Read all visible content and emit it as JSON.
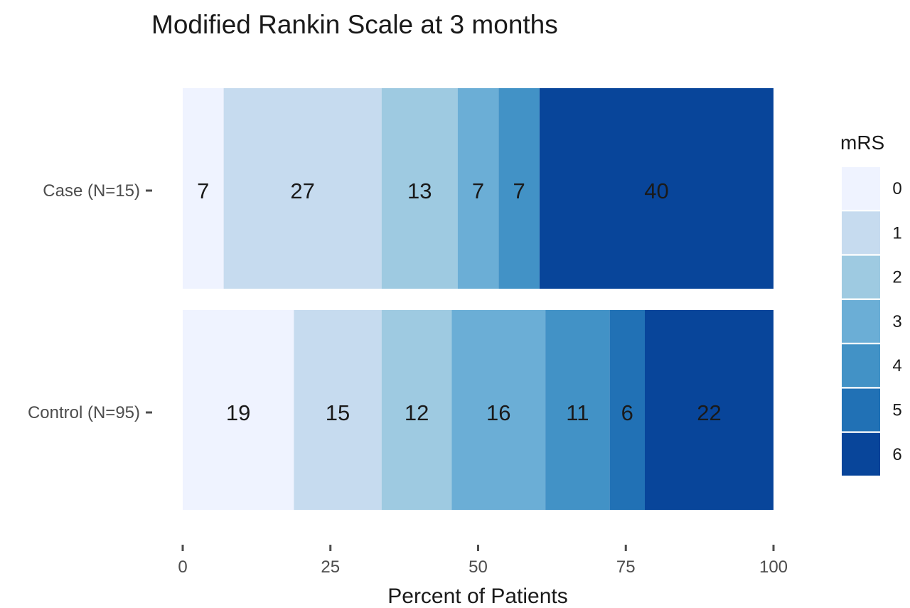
{
  "chart_data": {
    "type": "bar",
    "orientation": "horizontal",
    "stacked": true,
    "title": "Modified Rankin Scale at 3 months",
    "xlabel": "Percent of Patients",
    "ylabel": "",
    "xlim": [
      0,
      100
    ],
    "xticks": [
      0,
      25,
      50,
      75,
      100
    ],
    "categories": [
      "Case (N=15)",
      "Control (N=95)"
    ],
    "legend": {
      "title": "mRS",
      "position": "right"
    },
    "grid": false,
    "series": [
      {
        "name": "0",
        "color": "#EFF3FF",
        "values": [
          7,
          19
        ],
        "labels": [
          "7",
          "19"
        ]
      },
      {
        "name": "1",
        "color": "#C6DBEF",
        "values": [
          27,
          15
        ],
        "labels": [
          "27",
          "15"
        ]
      },
      {
        "name": "2",
        "color": "#9ECAE1",
        "values": [
          13,
          12
        ],
        "labels": [
          "13",
          "12"
        ]
      },
      {
        "name": "3",
        "color": "#6BAED6",
        "values": [
          7,
          16
        ],
        "labels": [
          "7",
          "16"
        ]
      },
      {
        "name": "4",
        "color": "#4292C6",
        "values": [
          7,
          11
        ],
        "labels": [
          "7",
          "11"
        ]
      },
      {
        "name": "5",
        "color": "#2171B5",
        "values": [
          0,
          6
        ],
        "labels": [
          "",
          "6"
        ]
      },
      {
        "name": "6",
        "color": "#08459A",
        "values": [
          40,
          22
        ],
        "labels": [
          "40",
          "22"
        ]
      }
    ]
  }
}
